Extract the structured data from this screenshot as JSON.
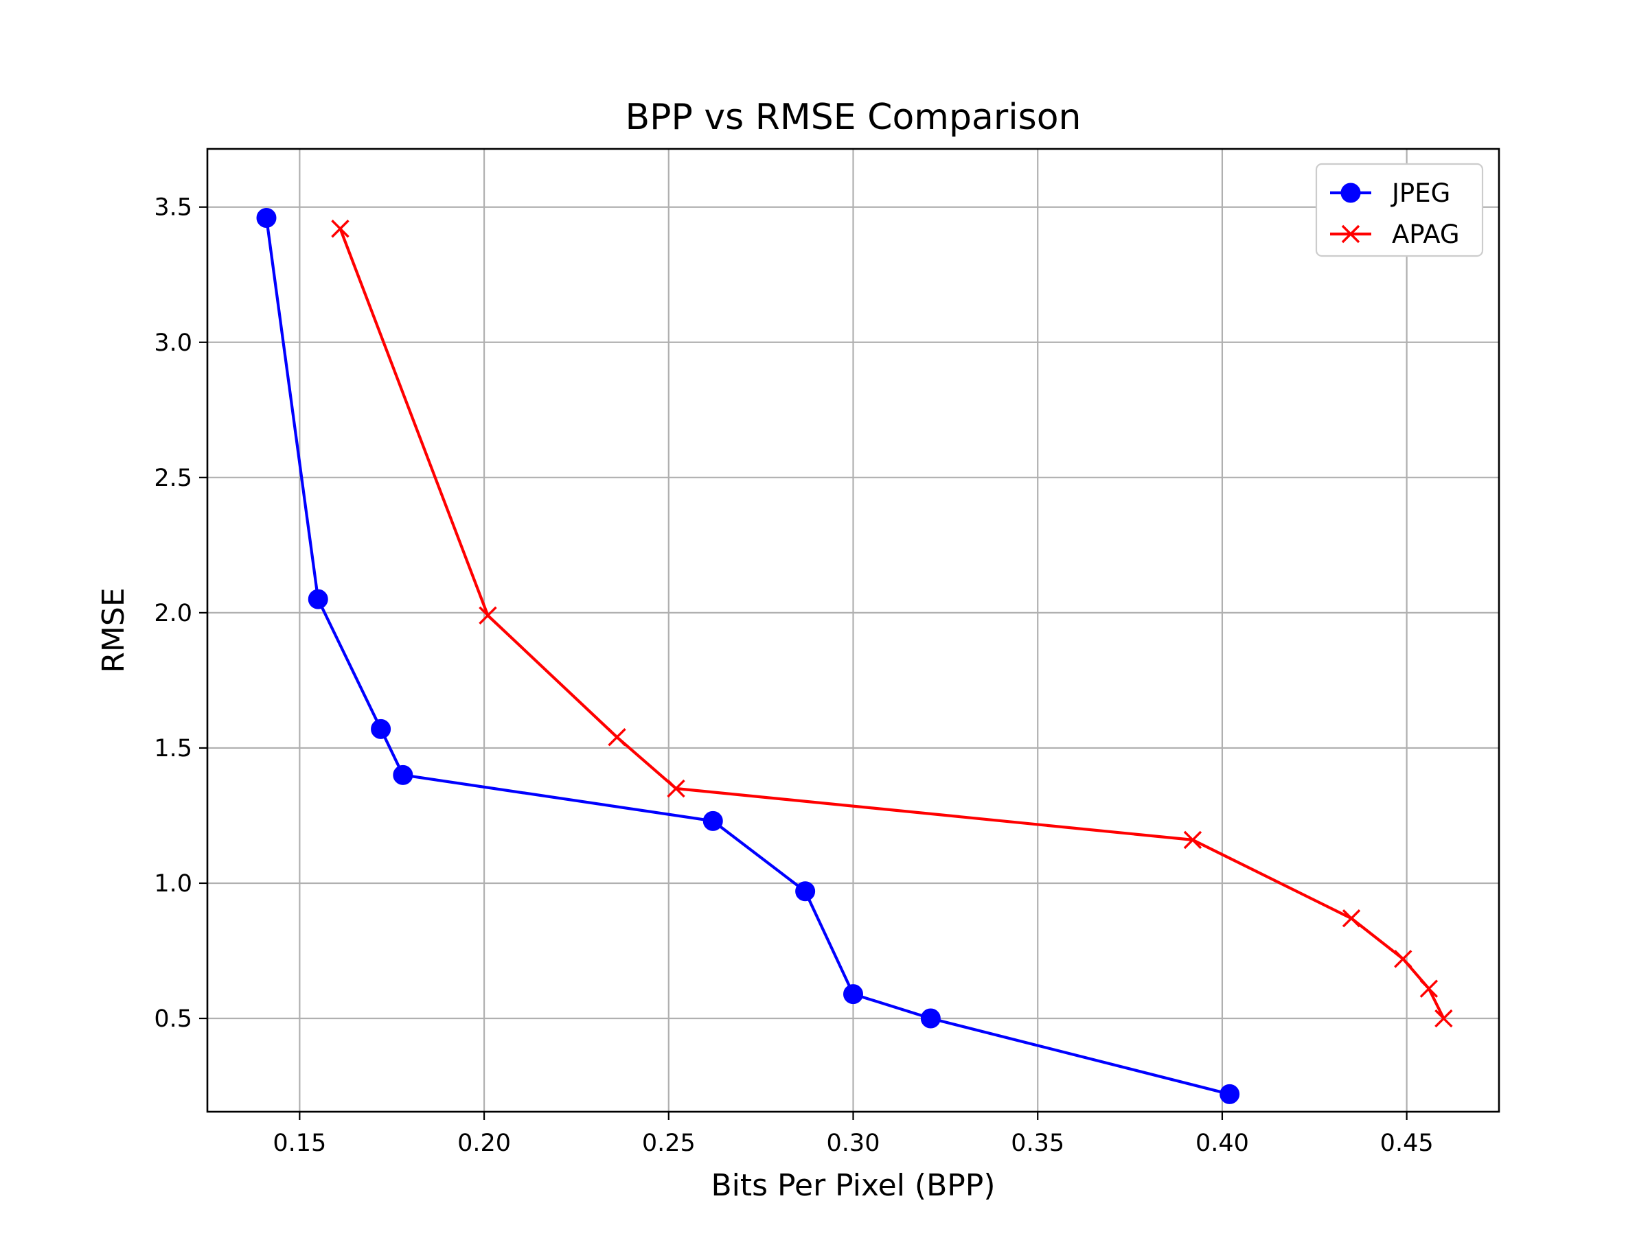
{
  "chart_data": {
    "type": "line",
    "title": "BPP vs RMSE Comparison",
    "xlabel": "Bits Per Pixel (BPP)",
    "ylabel": "RMSE",
    "xlim": [
      0.125,
      0.475
    ],
    "ylim": [
      0.155,
      3.715
    ],
    "xticks": [
      0.15,
      0.2,
      0.25,
      0.3,
      0.35,
      0.4,
      0.45
    ],
    "xtick_labels": [
      "0.15",
      "0.20",
      "0.25",
      "0.30",
      "0.35",
      "0.40",
      "0.45"
    ],
    "yticks": [
      0.5,
      1.0,
      1.5,
      2.0,
      2.5,
      3.0,
      3.5
    ],
    "ytick_labels": [
      "0.5",
      "1.0",
      "1.5",
      "2.0",
      "2.5",
      "3.0",
      "3.5"
    ],
    "grid": true,
    "legend_position": "top-right",
    "series": [
      {
        "name": "JPEG",
        "color": "#0000ff",
        "marker": "circle",
        "x": [
          0.141,
          0.155,
          0.172,
          0.178,
          0.262,
          0.287,
          0.3,
          0.321,
          0.402
        ],
        "y": [
          3.46,
          2.05,
          1.57,
          1.4,
          1.23,
          0.97,
          0.59,
          0.5,
          0.22
        ]
      },
      {
        "name": "APAG",
        "color": "#ff0000",
        "marker": "x",
        "x": [
          0.161,
          0.201,
          0.236,
          0.252,
          0.392,
          0.435,
          0.449,
          0.456,
          0.46
        ],
        "y": [
          3.42,
          1.99,
          1.54,
          1.35,
          1.16,
          0.87,
          0.72,
          0.61,
          0.5
        ]
      }
    ]
  }
}
